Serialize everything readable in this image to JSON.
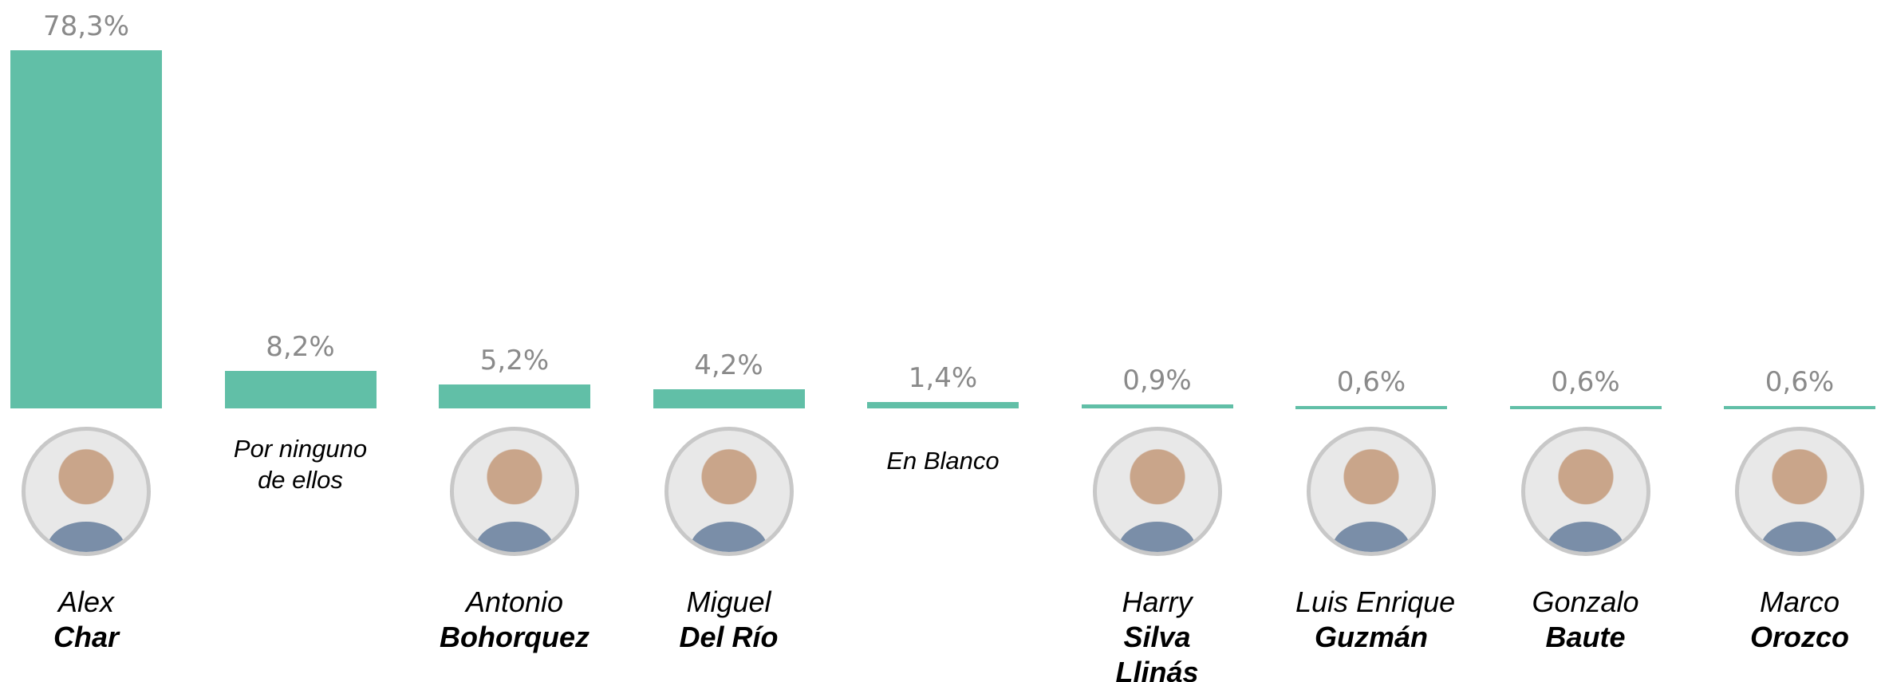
{
  "chart_data": {
    "type": "bar",
    "categories": [
      {
        "name": "Alex",
        "surname": "Char"
      },
      {
        "name": "Por ninguno de ellos"
      },
      {
        "name": "Antonio",
        "surname": "Bohorquez"
      },
      {
        "name": "Miguel",
        "surname": "Del Río"
      },
      {
        "name": "En Blanco"
      },
      {
        "name": "Harry",
        "surname": "Silva Llinás"
      },
      {
        "name": "Luis Enrique",
        "surname": "Guzmán"
      },
      {
        "name": "Gonzalo",
        "surname": "Baute"
      },
      {
        "name": "Marco",
        "surname": "Orozco"
      }
    ],
    "values": [
      78.3,
      8.2,
      5.2,
      4.2,
      1.4,
      0.9,
      0.6,
      0.6,
      0.6
    ],
    "value_labels": [
      "78,3%",
      "8,2%",
      "5,2%",
      "4,2%",
      "1,4%",
      "0,9%",
      "0,6%",
      "0,6%",
      "0,6%"
    ],
    "color": "#61bfa7",
    "ylim": [
      0,
      80
    ]
  }
}
